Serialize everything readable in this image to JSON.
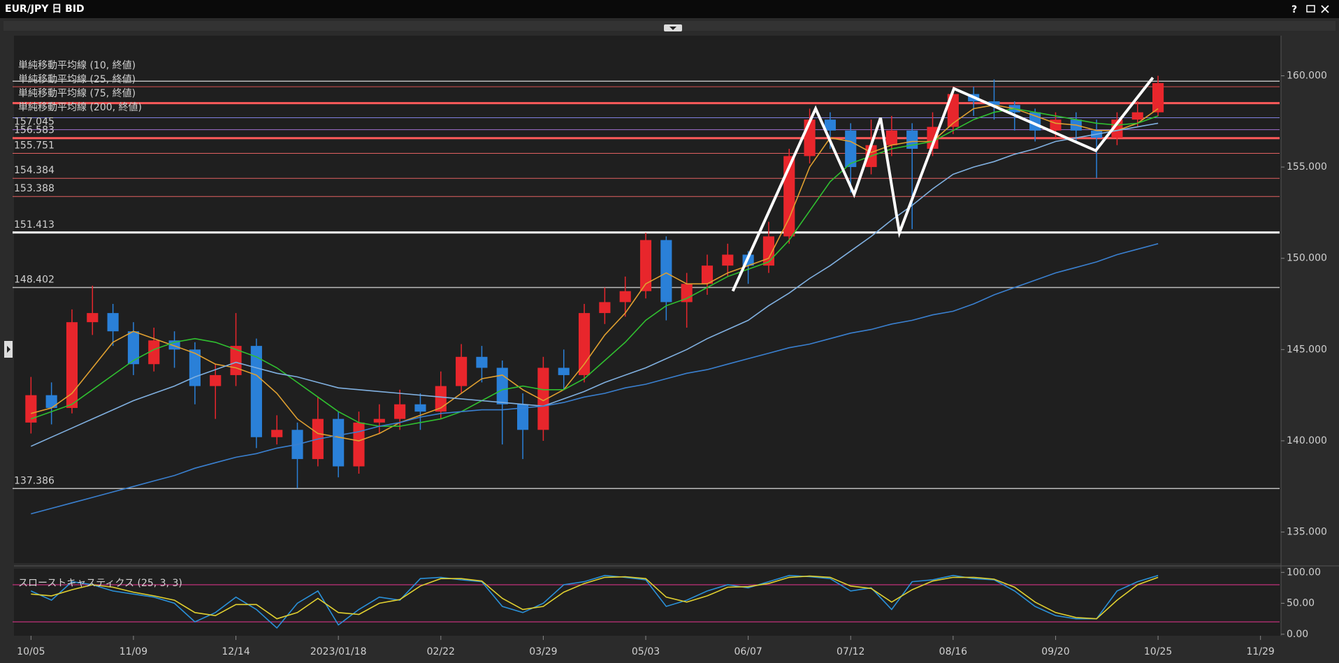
{
  "window": {
    "title": "EUR/JPY 日 BID",
    "help": "?"
  },
  "chart_data": [
    {
      "type": "candlestick",
      "x": [
        0,
        1,
        2,
        3,
        4,
        5,
        6,
        7,
        8,
        9,
        10,
        11,
        12,
        13,
        14,
        15,
        16,
        17,
        18,
        19,
        20,
        21,
        22,
        23,
        24,
        25,
        26,
        27,
        28,
        29,
        30,
        31,
        32,
        33,
        34,
        35,
        36,
        37,
        38,
        39,
        40,
        41,
        42,
        43,
        44,
        45,
        46,
        47,
        48,
        49,
        50,
        51,
        52,
        53,
        54,
        55
      ],
      "open": [
        141.0,
        142.5,
        141.8,
        146.5,
        147.0,
        146.0,
        144.2,
        145.5,
        145.0,
        143.0,
        143.6,
        145.2,
        140.2,
        140.6,
        139.0,
        141.2,
        138.6,
        141.0,
        141.2,
        142.0,
        141.6,
        143.0,
        144.6,
        144.0,
        142.0,
        140.6,
        144.0,
        143.6,
        147.0,
        147.6,
        148.2,
        151.0,
        147.6,
        148.6,
        149.6,
        150.2,
        149.6,
        151.2,
        155.6,
        157.6,
        157.0,
        155.0,
        156.2,
        157.0,
        156.0,
        157.2,
        159.0,
        158.6,
        158.4,
        158.0,
        157.0,
        157.6,
        157.0,
        156.6,
        157.6,
        158.0
      ],
      "high": [
        143.5,
        143.2,
        147.2,
        148.5,
        147.5,
        146.5,
        146.2,
        146.0,
        145.4,
        144.2,
        147.0,
        145.6,
        141.4,
        141.0,
        142.4,
        141.6,
        141.6,
        142.0,
        142.8,
        142.6,
        143.8,
        145.3,
        145.2,
        144.4,
        142.6,
        144.6,
        145.0,
        147.5,
        148.4,
        149.0,
        151.4,
        151.2,
        149.2,
        150.2,
        150.8,
        150.4,
        152.0,
        156.0,
        158.2,
        158.0,
        157.4,
        157.6,
        157.8,
        157.4,
        158.0,
        159.4,
        159.4,
        159.8,
        158.6,
        158.2,
        158.0,
        158.0,
        157.6,
        158.0,
        158.6,
        160.0
      ],
      "low": [
        140.4,
        140.9,
        141.5,
        145.8,
        145.2,
        143.6,
        143.8,
        144.0,
        142.0,
        141.2,
        143.0,
        139.6,
        139.8,
        137.4,
        138.6,
        138.0,
        138.2,
        140.4,
        140.6,
        140.6,
        141.2,
        142.6,
        143.2,
        139.8,
        139.0,
        140.0,
        142.8,
        143.2,
        146.4,
        146.8,
        147.8,
        146.6,
        146.2,
        148.0,
        149.0,
        148.6,
        149.2,
        150.8,
        155.2,
        156.0,
        153.6,
        154.6,
        155.6,
        151.6,
        155.6,
        156.8,
        157.8,
        157.6,
        157.0,
        156.4,
        156.6,
        156.4,
        154.4,
        156.2,
        157.2,
        157.8
      ],
      "close": [
        142.5,
        141.8,
        146.5,
        147.0,
        146.0,
        144.2,
        145.5,
        145.0,
        143.0,
        143.6,
        145.2,
        140.2,
        140.6,
        139.0,
        141.2,
        138.6,
        141.0,
        141.2,
        142.0,
        141.6,
        143.0,
        144.6,
        144.0,
        142.0,
        140.6,
        144.0,
        143.6,
        147.0,
        147.6,
        148.2,
        151.0,
        147.6,
        148.6,
        149.6,
        150.2,
        149.6,
        151.2,
        155.6,
        157.6,
        157.0,
        155.0,
        156.2,
        157.0,
        156.0,
        157.2,
        159.0,
        158.6,
        158.4,
        158.0,
        157.0,
        157.6,
        157.0,
        156.6,
        157.6,
        158.0,
        159.6
      ],
      "up_color": "#e8262c",
      "down_color": "#2a80d8",
      "series": [
        {
          "name": "単純移動平均線 (10, 終値)",
          "color": "#e0a030",
          "values": [
            141.5,
            141.8,
            142.6,
            144.0,
            145.4,
            146.0,
            145.6,
            145.2,
            144.8,
            144.2,
            144.0,
            143.6,
            142.6,
            141.2,
            140.4,
            140.2,
            140.0,
            140.4,
            141.0,
            141.4,
            141.8,
            142.6,
            143.4,
            143.6,
            142.8,
            142.2,
            142.8,
            144.2,
            145.8,
            147.0,
            148.6,
            149.2,
            148.6,
            148.6,
            149.2,
            149.6,
            150.0,
            152.2,
            155.0,
            156.6,
            156.4,
            155.8,
            156.2,
            156.4,
            156.4,
            157.4,
            158.2,
            158.4,
            158.2,
            157.8,
            157.4,
            157.3,
            157.0,
            157.0,
            157.4,
            158.2
          ]
        },
        {
          "name": "単純移動平均線 (25, 終値)",
          "color": "#30c030",
          "values": [
            141.2,
            141.6,
            142.0,
            142.8,
            143.6,
            144.4,
            145.0,
            145.4,
            145.6,
            145.4,
            145.0,
            144.6,
            144.0,
            143.2,
            142.4,
            141.6,
            141.0,
            140.8,
            140.8,
            141.0,
            141.2,
            141.6,
            142.2,
            142.8,
            143.0,
            142.8,
            142.8,
            143.4,
            144.4,
            145.4,
            146.6,
            147.4,
            147.8,
            148.4,
            149.0,
            149.4,
            149.8,
            151.0,
            152.6,
            154.2,
            155.2,
            155.6,
            156.0,
            156.2,
            156.4,
            157.0,
            157.6,
            158.0,
            158.2,
            158.0,
            157.8,
            157.6,
            157.4,
            157.3,
            157.4,
            157.8
          ]
        },
        {
          "name": "単純移動平均線 (75, 終値)",
          "color": "#80b0e0",
          "values": [
            139.7,
            140.2,
            140.7,
            141.2,
            141.7,
            142.2,
            142.6,
            143.0,
            143.5,
            143.9,
            144.3,
            144.0,
            143.7,
            143.5,
            143.2,
            142.9,
            142.8,
            142.7,
            142.6,
            142.5,
            142.4,
            142.3,
            142.2,
            142.1,
            142.0,
            141.9,
            142.3,
            142.7,
            143.2,
            143.6,
            144.0,
            144.5,
            145.0,
            145.6,
            146.1,
            146.6,
            147.4,
            148.1,
            148.9,
            149.6,
            150.4,
            151.2,
            152.1,
            152.9,
            153.8,
            154.6,
            155.0,
            155.3,
            155.7,
            156.0,
            156.4,
            156.6,
            156.8,
            157.0,
            157.2,
            157.4
          ]
        },
        {
          "name": "単純移動平均線 (200, 終値)",
          "color": "#3a80d0",
          "values": [
            136.0,
            136.3,
            136.6,
            136.9,
            137.2,
            137.5,
            137.8,
            138.1,
            138.5,
            138.8,
            139.1,
            139.3,
            139.6,
            139.8,
            140.1,
            140.3,
            140.5,
            140.8,
            141.0,
            141.3,
            141.5,
            141.6,
            141.7,
            141.7,
            141.8,
            141.9,
            142.1,
            142.4,
            142.6,
            142.9,
            143.1,
            143.4,
            143.7,
            143.9,
            144.2,
            144.5,
            144.8,
            145.1,
            145.3,
            145.6,
            145.9,
            146.1,
            146.4,
            146.6,
            146.9,
            147.1,
            147.5,
            148.0,
            148.4,
            148.8,
            149.2,
            149.5,
            149.8,
            150.2,
            150.5,
            150.8
          ]
        }
      ],
      "levels": [
        {
          "value": 159.7,
          "color": "#bbbbbb",
          "width": 1.5
        },
        {
          "value": 159.4,
          "color": "#d85050",
          "width": 1
        },
        {
          "value": 158.5,
          "color": "#ff5a5a",
          "width": 3
        },
        {
          "value": 157.7,
          "color": "#8080e0",
          "width": 1
        },
        {
          "value": 157.045,
          "label": "157.045",
          "color": "#a070d0",
          "width": 1
        },
        {
          "value": 156.583,
          "label": "156.583",
          "color": "#ff5a5a",
          "width": 3
        },
        {
          "value": 155.751,
          "label": "155.751",
          "color": "#e06060",
          "width": 1
        },
        {
          "value": 154.384,
          "label": "154.384",
          "color": "#e06060",
          "width": 1
        },
        {
          "value": 153.388,
          "label": "153.388",
          "color": "#e06060",
          "width": 1
        },
        {
          "value": 151.413,
          "label": "151.413",
          "color": "#ffffff",
          "width": 3
        },
        {
          "value": 148.402,
          "label": "148.402",
          "color": "#bbbbbb",
          "width": 1.5
        },
        {
          "value": 137.386,
          "label": "137.386",
          "color": "#bbbbbb",
          "width": 1.5
        }
      ],
      "drawing": {
        "color": "#ffffff",
        "x": [
          34.25,
          38.29,
          40.17,
          41.46,
          42.38,
          45.04,
          51.96,
          54.75
        ],
        "y": [
          148.2,
          158.2,
          153.5,
          157.7,
          151.4,
          159.3,
          155.9,
          159.9
        ]
      },
      "xlim": [
        -0.83,
        61
      ],
      "ylim": [
        133.3,
        162.2
      ],
      "xticks": [
        {
          "value": 0,
          "label": "10/05"
        },
        {
          "value": 5,
          "label": "11/09"
        },
        {
          "value": 10,
          "label": "12/14"
        },
        {
          "value": 15,
          "label": "2023/01/18"
        },
        {
          "value": 20,
          "label": "02/22"
        },
        {
          "value": 25,
          "label": "03/29"
        },
        {
          "value": 30,
          "label": "05/03"
        },
        {
          "value": 35,
          "label": "06/07"
        },
        {
          "value": 40,
          "label": "07/12"
        },
        {
          "value": 45,
          "label": "08/16"
        },
        {
          "value": 50,
          "label": "09/20"
        },
        {
          "value": 55,
          "label": "10/25"
        },
        {
          "value": 60,
          "label": "11/29"
        }
      ],
      "yticks": [
        {
          "value": 135,
          "label": "135.000"
        },
        {
          "value": 140,
          "label": "140.000"
        },
        {
          "value": 145,
          "label": "145.000"
        },
        {
          "value": 150,
          "label": "150.000"
        },
        {
          "value": 155,
          "label": "155.000"
        },
        {
          "value": 160,
          "label": "160.000"
        }
      ]
    },
    {
      "type": "line",
      "title": "スローストキャスティクス (25, 3, 3)",
      "x": [
        0,
        1,
        2,
        3,
        4,
        5,
        6,
        7,
        8,
        9,
        10,
        11,
        12,
        13,
        14,
        15,
        16,
        17,
        18,
        19,
        20,
        21,
        22,
        23,
        24,
        25,
        26,
        27,
        28,
        29,
        30,
        31,
        32,
        33,
        34,
        35,
        36,
        37,
        38,
        39,
        40,
        41,
        42,
        43,
        44,
        45,
        46,
        47,
        48,
        49,
        50,
        51,
        52,
        53,
        54,
        55
      ],
      "series": [
        {
          "color": "#2a90d8",
          "values": [
            70,
            55,
            85,
            80,
            70,
            65,
            60,
            50,
            20,
            35,
            60,
            40,
            10,
            50,
            70,
            15,
            40,
            60,
            55,
            90,
            92,
            88,
            85,
            45,
            35,
            50,
            80,
            85,
            95,
            92,
            88,
            45,
            55,
            70,
            80,
            75,
            85,
            95,
            93,
            90,
            70,
            75,
            40,
            85,
            88,
            95,
            90,
            88,
            70,
            45,
            30,
            25,
            25,
            70,
            85,
            95
          ]
        },
        {
          "color": "#e0d030",
          "values": [
            65,
            62,
            72,
            80,
            76,
            68,
            62,
            55,
            35,
            30,
            48,
            48,
            25,
            35,
            58,
            35,
            32,
            50,
            56,
            78,
            90,
            90,
            86,
            58,
            40,
            45,
            68,
            82,
            92,
            93,
            90,
            60,
            52,
            62,
            76,
            77,
            82,
            92,
            94,
            92,
            78,
            74,
            52,
            72,
            86,
            92,
            92,
            89,
            76,
            52,
            35,
            27,
            25,
            55,
            80,
            92
          ]
        }
      ],
      "levels": [
        {
          "value": 80,
          "color": "#c0307a"
        },
        {
          "value": 20,
          "color": "#c0307a"
        }
      ],
      "xlim": [
        -0.83,
        61
      ],
      "ylim": [
        -2.5,
        106
      ],
      "yticks": [
        {
          "value": 100,
          "label": "100.00"
        },
        {
          "value": 50,
          "label": "50.00"
        },
        {
          "value": 0,
          "label": "0.00"
        }
      ]
    }
  ]
}
